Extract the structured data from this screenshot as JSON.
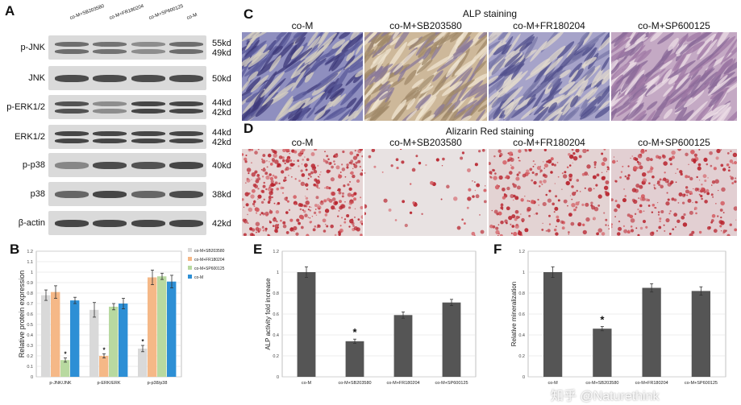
{
  "panels": {
    "A": "A",
    "B": "B",
    "C": "C",
    "D": "D",
    "E": "E",
    "F": "F"
  },
  "blot": {
    "lanes": [
      "co-M+SB203580",
      "co-M+FR180204",
      "co-M+SP600125",
      "co-M"
    ],
    "rows": [
      {
        "label": "p-JNK",
        "kd": [
          "55kd",
          "49kd"
        ]
      },
      {
        "label": "JNK",
        "kd": [
          "50kd"
        ]
      },
      {
        "label": "p-ERK1/2",
        "kd": [
          "44kd",
          "42kd"
        ]
      },
      {
        "label": "ERK1/2",
        "kd": [
          "44kd",
          "42kd"
        ]
      },
      {
        "label": "p-p38",
        "kd": [
          "40kd"
        ]
      },
      {
        "label": "p38",
        "kd": [
          "38kd"
        ]
      },
      {
        "label": "β-actin",
        "kd": [
          "42kd"
        ]
      }
    ]
  },
  "alp": {
    "title": "ALP staining",
    "labels": [
      "co-M",
      "co-M+SB203580",
      "co-M+FR180204",
      "co-M+SP600125"
    ]
  },
  "alizarin": {
    "title": "Alizarin Red staining",
    "labels": [
      "co-M",
      "co-M+SB203580",
      "co-M+FR180204",
      "co-M+SP600125"
    ]
  },
  "watermark": "知乎 @Naturethink",
  "colors": {
    "sb": "#d9d9d9",
    "fr": "#f5b887",
    "sp": "#b8d9a0",
    "com": "#2d8fd5",
    "single": "#555555"
  },
  "chart_data": [
    {
      "type": "bar",
      "panel": "B",
      "categories": [
        "p-JNK/JNK",
        "p-ERK/ERK",
        "p-p38/p38"
      ],
      "series": [
        {
          "name": "co-M+SB203580",
          "values": [
            0.78,
            0.64,
            0.27
          ],
          "errors": [
            0.05,
            0.07,
            0.03
          ]
        },
        {
          "name": "co-M+FR180204",
          "values": [
            0.81,
            0.2,
            0.95
          ],
          "errors": [
            0.06,
            0.02,
            0.07
          ]
        },
        {
          "name": "co-M+SP600125",
          "values": [
            0.16,
            0.67,
            0.96
          ],
          "errors": [
            0.02,
            0.03,
            0.03
          ]
        },
        {
          "name": "co-M",
          "values": [
            0.73,
            0.7,
            0.91
          ],
          "errors": [
            0.03,
            0.05,
            0.06
          ]
        }
      ],
      "asterisks": [
        [
          "",
          "",
          "*",
          ""
        ],
        [
          "",
          "*",
          "",
          ""
        ],
        [
          "*",
          "",
          "",
          ""
        ]
      ],
      "xlabel": "",
      "ylabel": "Relative protein expression",
      "ylim": [
        0,
        1.2
      ],
      "yticks": [
        "0",
        "0.1",
        "0.2",
        "0.3",
        "0.4",
        "0.5",
        "0.6",
        "0.7",
        "0.8",
        "0.9",
        "1",
        "1.1",
        "1.2"
      ],
      "grid": true,
      "legend": "right"
    },
    {
      "type": "bar",
      "panel": "E",
      "categories": [
        "co-M",
        "co-M+SB203580",
        "co-M+FR180204",
        "co-M+SP600125"
      ],
      "values": [
        1.0,
        0.34,
        0.59,
        0.71
      ],
      "errors": [
        0.05,
        0.02,
        0.03,
        0.03
      ],
      "asterisks": [
        "",
        "*",
        "",
        ""
      ],
      "xlabel": "",
      "ylabel": "ALP activity fold increase",
      "ylim": [
        0,
        1.2
      ],
      "yticks": [
        "0",
        "0.2",
        "0.4",
        "0.6",
        "0.8",
        "1",
        "1.2"
      ],
      "grid": true
    },
    {
      "type": "bar",
      "panel": "F",
      "categories": [
        "co-M",
        "co-M+SB203580",
        "co-M+FR180204",
        "co-M+SP600125"
      ],
      "values": [
        1.0,
        0.46,
        0.85,
        0.82
      ],
      "errors": [
        0.05,
        0.02,
        0.04,
        0.04
      ],
      "asterisks": [
        "",
        "*",
        "",
        ""
      ],
      "xlabel": "",
      "ylabel": "Relative mineralization",
      "ylim": [
        0,
        1.2
      ],
      "yticks": [
        "0",
        "0.2",
        "0.4",
        "0.6",
        "0.8",
        "1",
        "1.2"
      ],
      "grid": true
    }
  ]
}
